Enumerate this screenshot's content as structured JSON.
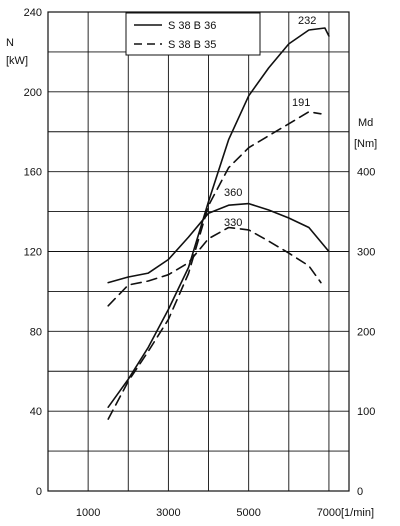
{
  "chart_data": {
    "type": "line",
    "xlabel": "[1/min]",
    "x_ticks": [
      "1000",
      "3000",
      "5000",
      "7000"
    ],
    "xlim": [
      0,
      7500
    ],
    "power_axis": {
      "label_line1": "N",
      "label_line2": "[kW]",
      "ticks": [
        "0",
        "40",
        "80",
        "120",
        "160",
        "200",
        "240"
      ],
      "ylim": [
        0,
        240
      ]
    },
    "torque_axis": {
      "label_line1": "Md",
      "label_line2": "[Nm]",
      "ticks": [
        "0",
        "100",
        "200",
        "300",
        "400"
      ],
      "ylim": [
        0,
        600
      ]
    },
    "legend": [
      {
        "label": "S 38  B 36",
        "style": "solid"
      },
      {
        "label": "S 38  B 35",
        "style": "dashed"
      }
    ],
    "annotations": [
      "232",
      "191",
      "360",
      "330"
    ],
    "series": [
      {
        "name": "S 38  B 36",
        "style": "solid",
        "axis": "power",
        "x": [
          1500,
          2000,
          2500,
          3000,
          3500,
          4000,
          4500,
          5000,
          5500,
          6000,
          6500,
          6900,
          7000
        ],
        "y": [
          42,
          56,
          72,
          91,
          112,
          145,
          176,
          198,
          212,
          224,
          231,
          232,
          228
        ]
      },
      {
        "name": "S 38  B 35",
        "style": "dashed",
        "axis": "power",
        "x": [
          1500,
          2000,
          2500,
          3000,
          3500,
          4000,
          4500,
          5000,
          5500,
          6000,
          6500,
          6800
        ],
        "y": [
          36,
          55,
          70,
          86,
          109,
          143,
          162,
          172,
          178,
          184,
          190,
          189
        ]
      },
      {
        "name": "S 38  B 36",
        "style": "solid",
        "axis": "torque",
        "x": [
          1500,
          2000,
          2500,
          3000,
          3500,
          4000,
          4500,
          5000,
          5500,
          6000,
          6500,
          7000
        ],
        "y": [
          261,
          268,
          273,
          290,
          318,
          348,
          358,
          360,
          352,
          342,
          330,
          300
        ]
      },
      {
        "name": "S 38  B 35",
        "style": "dashed",
        "axis": "torque",
        "x": [
          1500,
          2000,
          2500,
          3000,
          3500,
          4000,
          4500,
          5000,
          5500,
          6000,
          6500,
          6800
        ],
        "y": [
          232,
          258,
          263,
          271,
          286,
          316,
          330,
          327,
          313,
          298,
          282,
          261
        ]
      }
    ]
  }
}
